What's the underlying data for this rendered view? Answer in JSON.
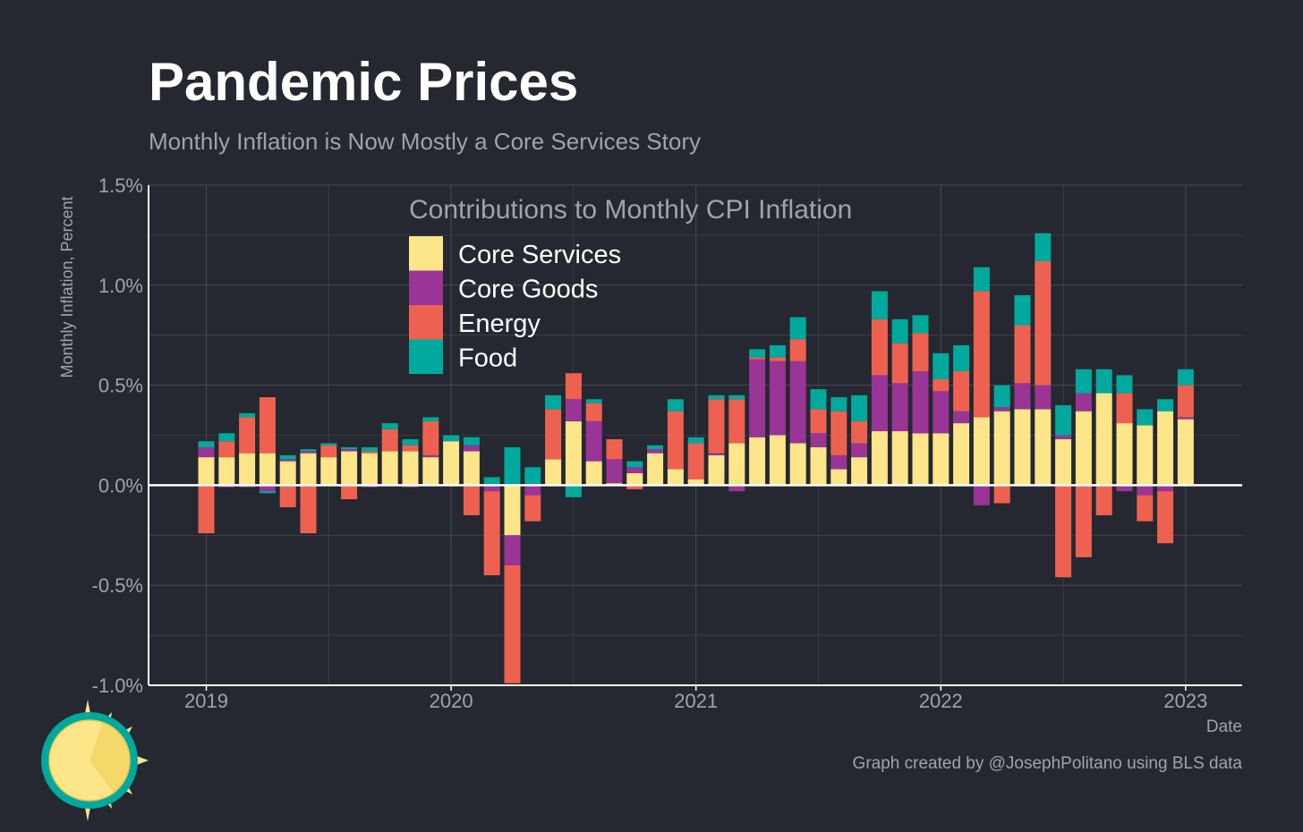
{
  "colors": {
    "background": "#252830",
    "core_services": "#FDE58A",
    "core_goods": "#9A3496",
    "energy": "#EE6151",
    "food": "#00A99D",
    "grid": "#474B55",
    "axis": "#FFFFFF",
    "muted_text": "#A0A3AA"
  },
  "icons": [
    "sun-logo-icon"
  ],
  "chart_data": {
    "type": "bar",
    "stacked": true,
    "title": "Pandemic Prices",
    "subtitle": "Monthly Inflation is Now Mostly a Core Services Story",
    "xlabel": "Date",
    "ylabel": "Monthly Inflation, Percent",
    "caption": "Graph created by @JosephPolitano using BLS data",
    "legend_title": "Contributions to Monthly CPI Inflation",
    "legend_position": "top-left inside",
    "ylim": [
      -1.0,
      1.5
    ],
    "yticks": [
      -1.0,
      -0.5,
      0.0,
      0.5,
      1.0,
      1.5
    ],
    "ytick_labels": [
      "-1.0%",
      "-0.5%",
      "0.0%",
      "0.5%",
      "1.0%",
      "1.5%"
    ],
    "xticks": [
      "2019-01",
      "2020-01",
      "2021-01",
      "2022-01",
      "2023-01"
    ],
    "xtick_labels": [
      "2019",
      "2020",
      "2021",
      "2022",
      "2023"
    ],
    "grid": true,
    "x": [
      "2019-01",
      "2019-02",
      "2019-03",
      "2019-04",
      "2019-05",
      "2019-06",
      "2019-07",
      "2019-08",
      "2019-09",
      "2019-10",
      "2019-11",
      "2019-12",
      "2020-01",
      "2020-02",
      "2020-03",
      "2020-04",
      "2020-05",
      "2020-06",
      "2020-07",
      "2020-08",
      "2020-09",
      "2020-10",
      "2020-11",
      "2020-12",
      "2021-01",
      "2021-02",
      "2021-03",
      "2021-04",
      "2021-05",
      "2021-06",
      "2021-07",
      "2021-08",
      "2021-09",
      "2021-10",
      "2021-11",
      "2021-12",
      "2022-01",
      "2022-02",
      "2022-03",
      "2022-04",
      "2022-05",
      "2022-06",
      "2022-07",
      "2022-08",
      "2022-09",
      "2022-10",
      "2022-11",
      "2022-12",
      "2023-01"
    ],
    "series": [
      {
        "name": "Core Services",
        "color": "#FDE58A",
        "values": [
          0.14,
          0.14,
          0.16,
          0.16,
          0.12,
          0.16,
          0.14,
          0.17,
          0.16,
          0.17,
          0.17,
          0.14,
          0.22,
          0.17,
          0.0,
          -0.25,
          0.0,
          0.13,
          0.32,
          0.12,
          0.01,
          0.06,
          0.16,
          0.08,
          0.03,
          0.15,
          0.21,
          0.24,
          0.25,
          0.21,
          0.19,
          0.08,
          0.14,
          0.27,
          0.27,
          0.26,
          0.26,
          0.31,
          0.34,
          0.37,
          0.38,
          0.38,
          0.23,
          0.37,
          0.46,
          0.31,
          0.3,
          0.37,
          0.33
        ]
      },
      {
        "name": "Core Goods",
        "color": "#9A3496",
        "values": [
          0.05,
          -0.01,
          -0.01,
          -0.03,
          0.01,
          0.01,
          0.0,
          0.01,
          -0.01,
          0.0,
          -0.01,
          0.01,
          0.0,
          0.03,
          -0.03,
          -0.15,
          -0.05,
          0.0,
          0.11,
          0.2,
          0.12,
          0.03,
          0.02,
          0.0,
          0.0,
          0.01,
          -0.03,
          0.39,
          0.37,
          0.41,
          0.07,
          0.07,
          0.07,
          0.28,
          0.24,
          0.31,
          0.21,
          0.06,
          -0.1,
          0.02,
          0.13,
          0.12,
          0.02,
          0.09,
          0.0,
          -0.03,
          -0.05,
          -0.03,
          0.01
        ]
      },
      {
        "name": "Energy",
        "color": "#EE6151",
        "values": [
          -0.24,
          0.08,
          0.18,
          0.28,
          -0.11,
          -0.24,
          0.06,
          -0.07,
          0.01,
          0.11,
          0.03,
          0.17,
          0.0,
          -0.15,
          -0.42,
          -0.59,
          -0.13,
          0.25,
          0.13,
          0.09,
          0.1,
          -0.02,
          0.0,
          0.29,
          0.18,
          0.27,
          0.22,
          0.01,
          0.02,
          0.11,
          0.12,
          0.22,
          0.11,
          0.28,
          0.2,
          0.19,
          0.06,
          0.2,
          0.63,
          -0.09,
          0.29,
          0.62,
          -0.46,
          -0.36,
          -0.15,
          0.15,
          -0.13,
          -0.26,
          0.16
        ]
      },
      {
        "name": "Food",
        "color": "#00A99D",
        "values": [
          0.03,
          0.04,
          0.02,
          -0.01,
          0.02,
          0.01,
          0.01,
          0.01,
          0.02,
          0.03,
          0.03,
          0.02,
          0.03,
          0.04,
          0.04,
          0.19,
          0.09,
          0.07,
          -0.06,
          0.02,
          0.0,
          0.03,
          0.02,
          0.06,
          0.03,
          0.02,
          0.02,
          0.04,
          0.06,
          0.11,
          0.1,
          0.07,
          0.13,
          0.14,
          0.12,
          0.09,
          0.13,
          0.13,
          0.12,
          0.11,
          0.15,
          0.14,
          0.15,
          0.12,
          0.12,
          0.09,
          0.08,
          0.06,
          0.08
        ]
      }
    ]
  }
}
